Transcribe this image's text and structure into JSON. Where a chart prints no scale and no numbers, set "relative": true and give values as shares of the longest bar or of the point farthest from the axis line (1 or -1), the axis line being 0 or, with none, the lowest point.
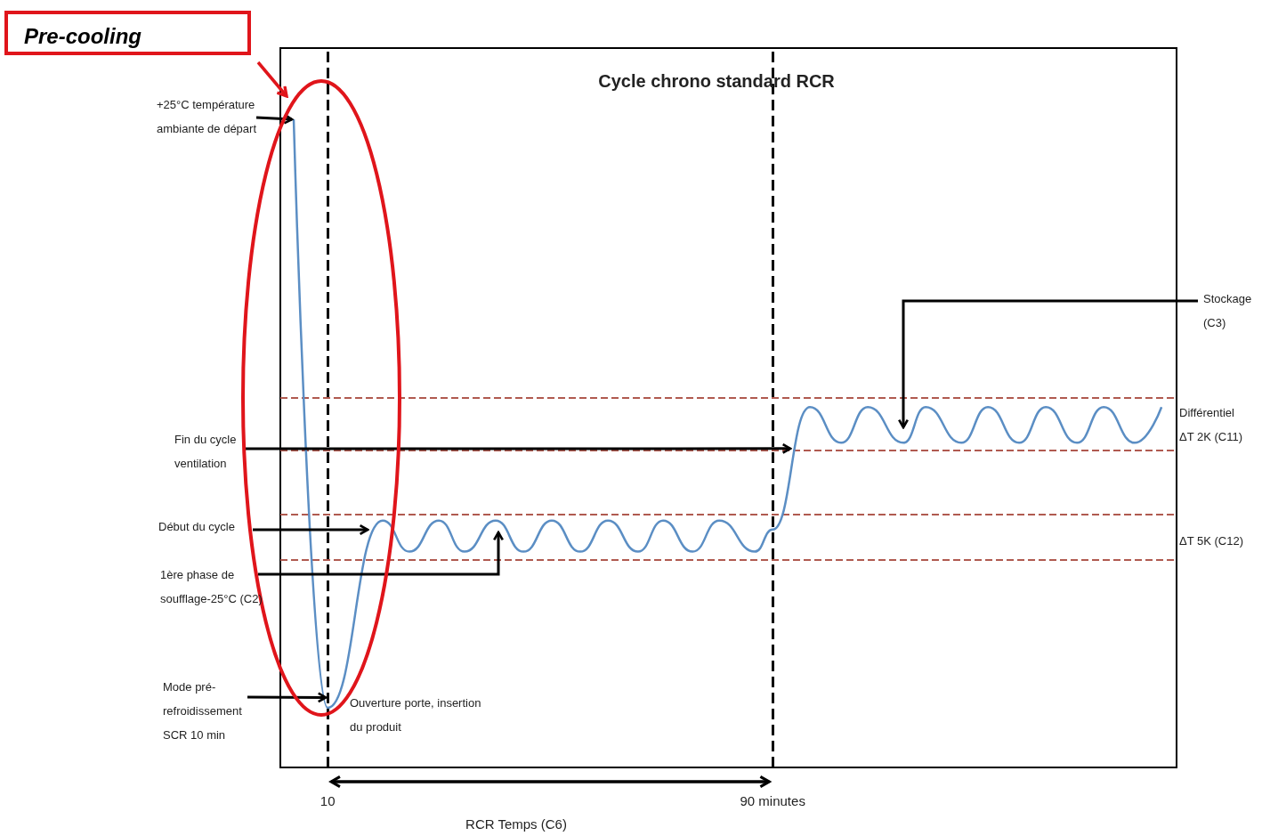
{
  "chart_data": {
    "type": "line",
    "title": "Cycle chrono standard RCR",
    "xlabel": "RCR Temps (C6)",
    "relative": true,
    "xlim": [
      1.5,
      162.6
    ],
    "xticks": [
      10,
      {
        "value": 90,
        "label": "90 minutes"
      }
    ],
    "x": [
      3.9,
      10,
      19.9,
      24.7,
      30,
      34.6,
      40.2,
      45.2,
      50.3,
      55.4,
      60.4,
      65.8,
      70.3,
      75.6,
      80.4,
      86.8,
      90,
      96.7,
      102.3,
      107.1,
      113.5,
      117.5,
      123.9,
      128.7,
      134.3,
      139.1,
      144.7,
      149.5,
      155.1,
      159.9
    ],
    "series": [
      {
        "color": "#5b8ec4",
        "values": [
          1,
          0.092,
          0.381,
          0.333,
          0.381,
          0.333,
          0.381,
          0.333,
          0.381,
          0.333,
          0.381,
          0.333,
          0.381,
          0.333,
          0.381,
          0.333,
          0.367,
          0.556,
          0.501,
          0.556,
          0.501,
          0.556,
          0.501,
          0.556,
          0.501,
          0.556,
          0.501,
          0.556,
          0.501,
          0.556
        ]
      }
    ],
    "marker": "none",
    "ref_lines": [
      {
        "axis": "x",
        "value": 10,
        "color": "#000000",
        "line_style": "dashed"
      },
      {
        "axis": "x",
        "value": 90,
        "color": "#000000",
        "line_style": "dashed"
      },
      {
        "axis": "y",
        "value": 0.57,
        "color": "#b05a50",
        "line_style": "dashed"
      },
      {
        "axis": "y",
        "value": 0.492,
        "color": "#b05a50",
        "line_style": "dashed"
      },
      {
        "axis": "y",
        "value": 0.388,
        "color": "#b05a50",
        "line_style": "dashed"
      },
      {
        "axis": "y",
        "value": 0.322,
        "color": "#b05a50",
        "line_style": "dashed"
      }
    ],
    "annotations": [
      {
        "text": "+25°C température ambiante de départ",
        "x": 3.9,
        "y": 1
      },
      {
        "text": "Fin du cycle ventilation",
        "x": 93.5,
        "y": 0.492
      },
      "Début du cycle",
      "1ère phase de soufflage-25°C (C2)",
      {
        "text": "Mode pré-refroidissement SCR 10 min",
        "x": 10,
        "y": 0.108
      },
      "Ouverture porte, insertion du produit",
      "Stockage (C3)",
      "Différentiel ΔT 2K (C11)",
      "ΔT 5K (C12)",
      "Pre-cooling"
    ]
  }
}
